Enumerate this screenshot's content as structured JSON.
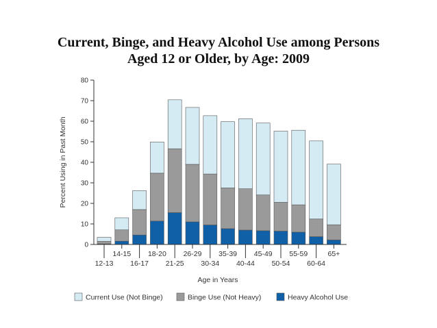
{
  "title_lines": [
    "Current, Binge, and Heavy Alcohol Use among Persons",
    "Aged 12 or Older, by Age: 2009"
  ],
  "chart_data": {
    "type": "bar",
    "stacked": true,
    "categories": [
      "12-13",
      "14-15",
      "16-17",
      "18-20",
      "21-25",
      "26-29",
      "30-34",
      "35-39",
      "40-44",
      "45-49",
      "50-54",
      "55-59",
      "60-64",
      "65+"
    ],
    "series": [
      {
        "name": "Heavy Alcohol Use",
        "color": "#1060a8",
        "values": [
          0.3,
          1.6,
          4.6,
          11.4,
          15.5,
          11.0,
          9.5,
          7.7,
          7.0,
          6.7,
          6.5,
          6.0,
          3.8,
          2.2
        ]
      },
      {
        "name": "Binge Use (Not Heavy)",
        "color": "#9a9a9a",
        "values": [
          1.2,
          5.5,
          12.4,
          23.3,
          31.1,
          28.0,
          24.8,
          19.8,
          20.1,
          17.4,
          14.0,
          13.3,
          8.6,
          7.4
        ]
      },
      {
        "name": "Current Use (Not Binge)",
        "color": "#d5ebf3",
        "values": [
          2.0,
          5.9,
          9.2,
          15.2,
          23.8,
          27.7,
          28.4,
          32.3,
          34.1,
          35.0,
          34.7,
          36.3,
          38.0,
          29.5
        ]
      }
    ],
    "legend_order": [
      "Current Use (Not Binge)",
      "Binge Use (Not Heavy)",
      "Heavy Alcohol Use"
    ],
    "legend_position": "bottom",
    "xlabel": "Age in Years",
    "ylabel": "Percent Using in Past Month",
    "ylim": [
      0,
      80
    ],
    "yticks": [
      0,
      10,
      20,
      30,
      40,
      50,
      60,
      70,
      80
    ],
    "grid": false
  }
}
